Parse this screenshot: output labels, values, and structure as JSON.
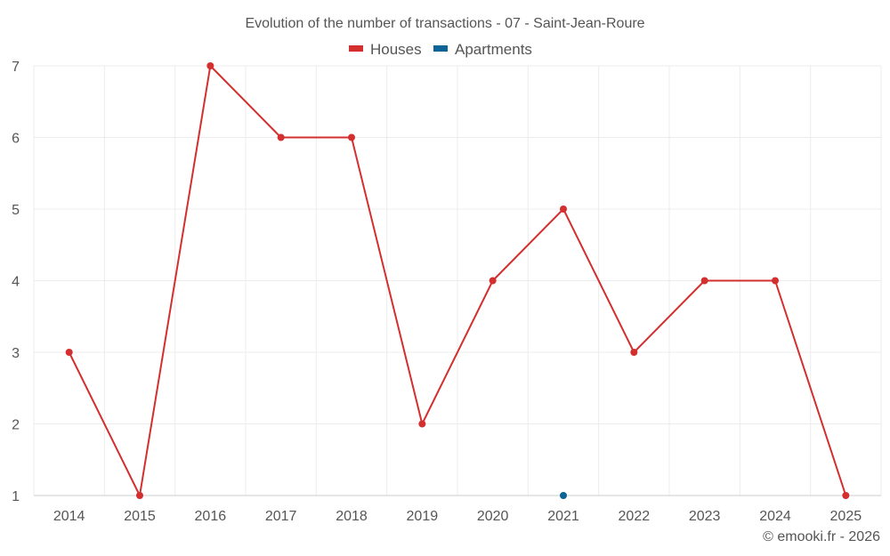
{
  "chart_data": {
    "type": "line",
    "title": "Evolution of the number of transactions - 07 - Saint-Jean-Roure",
    "categories": [
      "2014",
      "2015",
      "2016",
      "2017",
      "2018",
      "2019",
      "2020",
      "2021",
      "2022",
      "2023",
      "2024",
      "2025"
    ],
    "series": [
      {
        "name": "Houses",
        "color": "#d32f2f",
        "values": [
          3,
          1,
          7,
          6,
          6,
          2,
          4,
          5,
          3,
          4,
          4,
          1
        ]
      },
      {
        "name": "Apartments",
        "color": "#0a6496",
        "values": [
          null,
          null,
          null,
          null,
          null,
          null,
          null,
          1,
          null,
          null,
          null,
          null
        ]
      }
    ],
    "yticks": [
      1,
      2,
      3,
      4,
      5,
      6,
      7
    ],
    "ylim": [
      1,
      7
    ],
    "legend_position": "top-center",
    "grid": true
  },
  "footer": {
    "credit": "© emooki.fr - 2026"
  }
}
